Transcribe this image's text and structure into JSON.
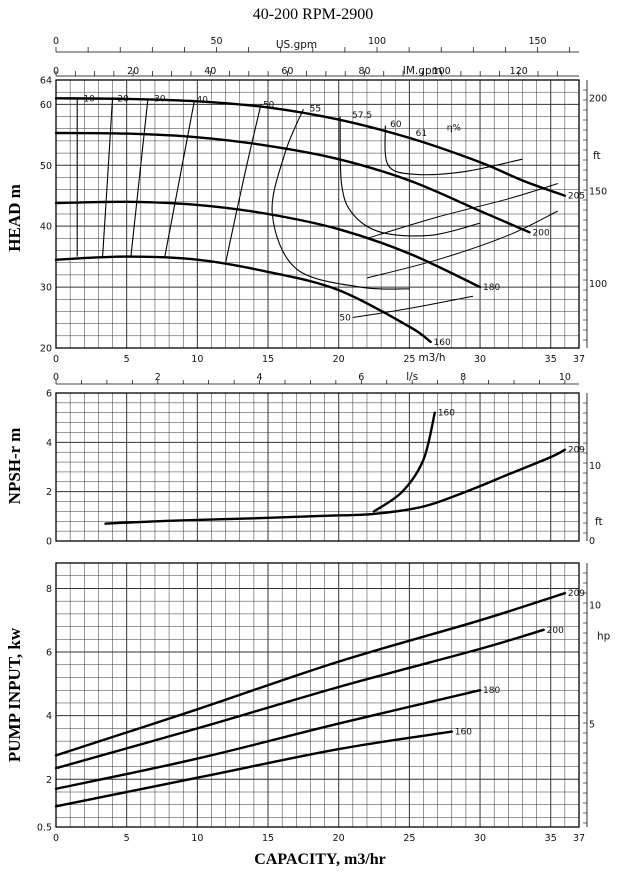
{
  "title": "40-200    RPM-2900",
  "xlabel": "CAPACITY, m3/hr",
  "colors": {
    "line": "#000000",
    "grid": "#333333",
    "background": "#ffffff"
  },
  "chart_data": [
    {
      "type": "line",
      "title": "HEAD m",
      "ylabel": "HEAD m",
      "xlim": [
        0,
        37
      ],
      "ylim": [
        20,
        64
      ],
      "x_ticks": [
        0,
        5,
        10,
        15,
        20,
        25,
        30,
        35,
        37
      ],
      "y_ticks": [
        20,
        30,
        40,
        50,
        60,
        64
      ],
      "secondary_axes": {
        "us_gpm": {
          "label": "US.gpm",
          "ticks": [
            0,
            50,
            100,
            150
          ]
        },
        "im_gpm": {
          "label": "IM.gpm",
          "ticks": [
            0,
            20,
            40,
            60,
            80,
            100,
            120
          ]
        },
        "ft": {
          "label": "ft",
          "ticks": [
            100,
            150,
            200
          ]
        },
        "m3h_label": "m3/h"
      },
      "series": [
        {
          "name": "205",
          "x": [
            0,
            5,
            10,
            15,
            20,
            25,
            30,
            33,
            36
          ],
          "values": [
            61,
            60.9,
            60.5,
            59.5,
            57.5,
            54.5,
            50.5,
            47.5,
            45
          ]
        },
        {
          "name": "200",
          "x": [
            0,
            5,
            10,
            15,
            20,
            25,
            30,
            33.5
          ],
          "values": [
            55.3,
            55.2,
            54.6,
            53.2,
            51,
            47.5,
            42.5,
            39
          ]
        },
        {
          "name": "180",
          "x": [
            0,
            5,
            10,
            15,
            20,
            25,
            30
          ],
          "values": [
            43.8,
            44,
            43.5,
            42,
            39.5,
            35.5,
            30
          ]
        },
        {
          "name": "160",
          "x": [
            0,
            5,
            10,
            15,
            20,
            25,
            26.5
          ],
          "values": [
            34.5,
            35,
            34.5,
            32.5,
            29.5,
            23.5,
            21
          ]
        }
      ],
      "efficiency_curves": [
        {
          "name": "10",
          "x": [
            1.5,
            1.5
          ],
          "values": [
            60.9,
            35
          ]
        },
        {
          "name": "20",
          "x": [
            4,
            3.3
          ],
          "values": [
            60.9,
            35
          ]
        },
        {
          "name": "30",
          "x": [
            6.5,
            5.3
          ],
          "values": [
            60.9,
            35
          ]
        },
        {
          "name": "40",
          "x": [
            9.8,
            7.7
          ],
          "values": [
            60.7,
            35
          ]
        },
        {
          "name": "50",
          "x": [
            14.5,
            13.3,
            12
          ],
          "values": [
            60,
            48,
            34
          ]
        },
        {
          "name": "55",
          "x": [
            17.5,
            16.2,
            15.3,
            17,
            21.5,
            25
          ],
          "values": [
            59.2,
            52,
            42,
            33,
            30,
            29.7
          ]
        },
        {
          "name": "57.5",
          "x": [
            20.1,
            20.2,
            21,
            23,
            26.5,
            30
          ],
          "values": [
            58,
            47,
            42,
            39,
            38.5,
            40.5
          ]
        },
        {
          "name": "60",
          "x": [
            23.3,
            23.5,
            25.5,
            29,
            33
          ],
          "values": [
            56.5,
            50,
            48.5,
            49,
            51
          ]
        }
      ],
      "efficiency_labels": [
        "10",
        "20",
        "30",
        "40",
        "50",
        "55",
        "57.5",
        "60",
        "61",
        "η%"
      ],
      "margin_lines": [
        {
          "name": "50",
          "x": [
            21,
            25,
            29.5
          ],
          "values": [
            25,
            26.5,
            28.5
          ]
        },
        {
          "name": "",
          "x": [
            22,
            27,
            32,
            35.5
          ],
          "values": [
            31.5,
            34.5,
            38.5,
            42.5
          ]
        },
        {
          "name": "",
          "x": [
            22,
            27,
            32,
            35.5
          ],
          "values": [
            38,
            41.5,
            44.5,
            47
          ]
        }
      ]
    },
    {
      "type": "line",
      "title": "NPSH-r m",
      "ylabel": "NPSH-r m",
      "xlim": [
        0,
        37
      ],
      "ylim": [
        0,
        6
      ],
      "x_ticks": [
        0,
        2,
        4,
        6,
        8,
        10
      ],
      "x_tick_unit": "l/s",
      "y_ticks": [
        0,
        2,
        4,
        6
      ],
      "secondary_axes": {
        "ft": {
          "label": "ft",
          "ticks": [
            0,
            10
          ]
        }
      },
      "series": [
        {
          "name": "209",
          "x": [
            3.5,
            8,
            14,
            19,
            22.5,
            26,
            29,
            32,
            35,
            36
          ],
          "values": [
            0.7,
            0.82,
            0.92,
            1.02,
            1.1,
            1.4,
            2,
            2.7,
            3.4,
            3.7
          ]
        },
        {
          "name": "160",
          "x": [
            22.5,
            24.5,
            26,
            26.8
          ],
          "values": [
            1.2,
            2,
            3.3,
            5.2
          ]
        }
      ]
    },
    {
      "type": "line",
      "title": "PUMP INPUT, kw",
      "ylabel": "PUMP INPUT, kw",
      "xlim": [
        0,
        37
      ],
      "ylim": [
        0.5,
        8.8
      ],
      "x_ticks": [
        0,
        5,
        10,
        15,
        20,
        25,
        30,
        35,
        37
      ],
      "y_ticks": [
        0.5,
        2,
        4,
        6,
        8
      ],
      "secondary_axes": {
        "hp": {
          "label": "hp",
          "ticks": [
            5,
            10
          ]
        }
      },
      "series": [
        {
          "name": "209",
          "x": [
            0,
            10,
            20,
            30,
            36
          ],
          "values": [
            2.75,
            4.2,
            5.7,
            7.0,
            7.85
          ]
        },
        {
          "name": "200",
          "x": [
            0,
            10,
            20,
            30,
            34.5
          ],
          "values": [
            2.35,
            3.6,
            4.9,
            6.1,
            6.7
          ]
        },
        {
          "name": "180",
          "x": [
            0,
            10,
            20,
            30
          ],
          "values": [
            1.7,
            2.65,
            3.75,
            4.8
          ]
        },
        {
          "name": "160",
          "x": [
            0,
            10,
            20,
            28
          ],
          "values": [
            1.15,
            2.05,
            2.95,
            3.5
          ]
        }
      ]
    }
  ]
}
